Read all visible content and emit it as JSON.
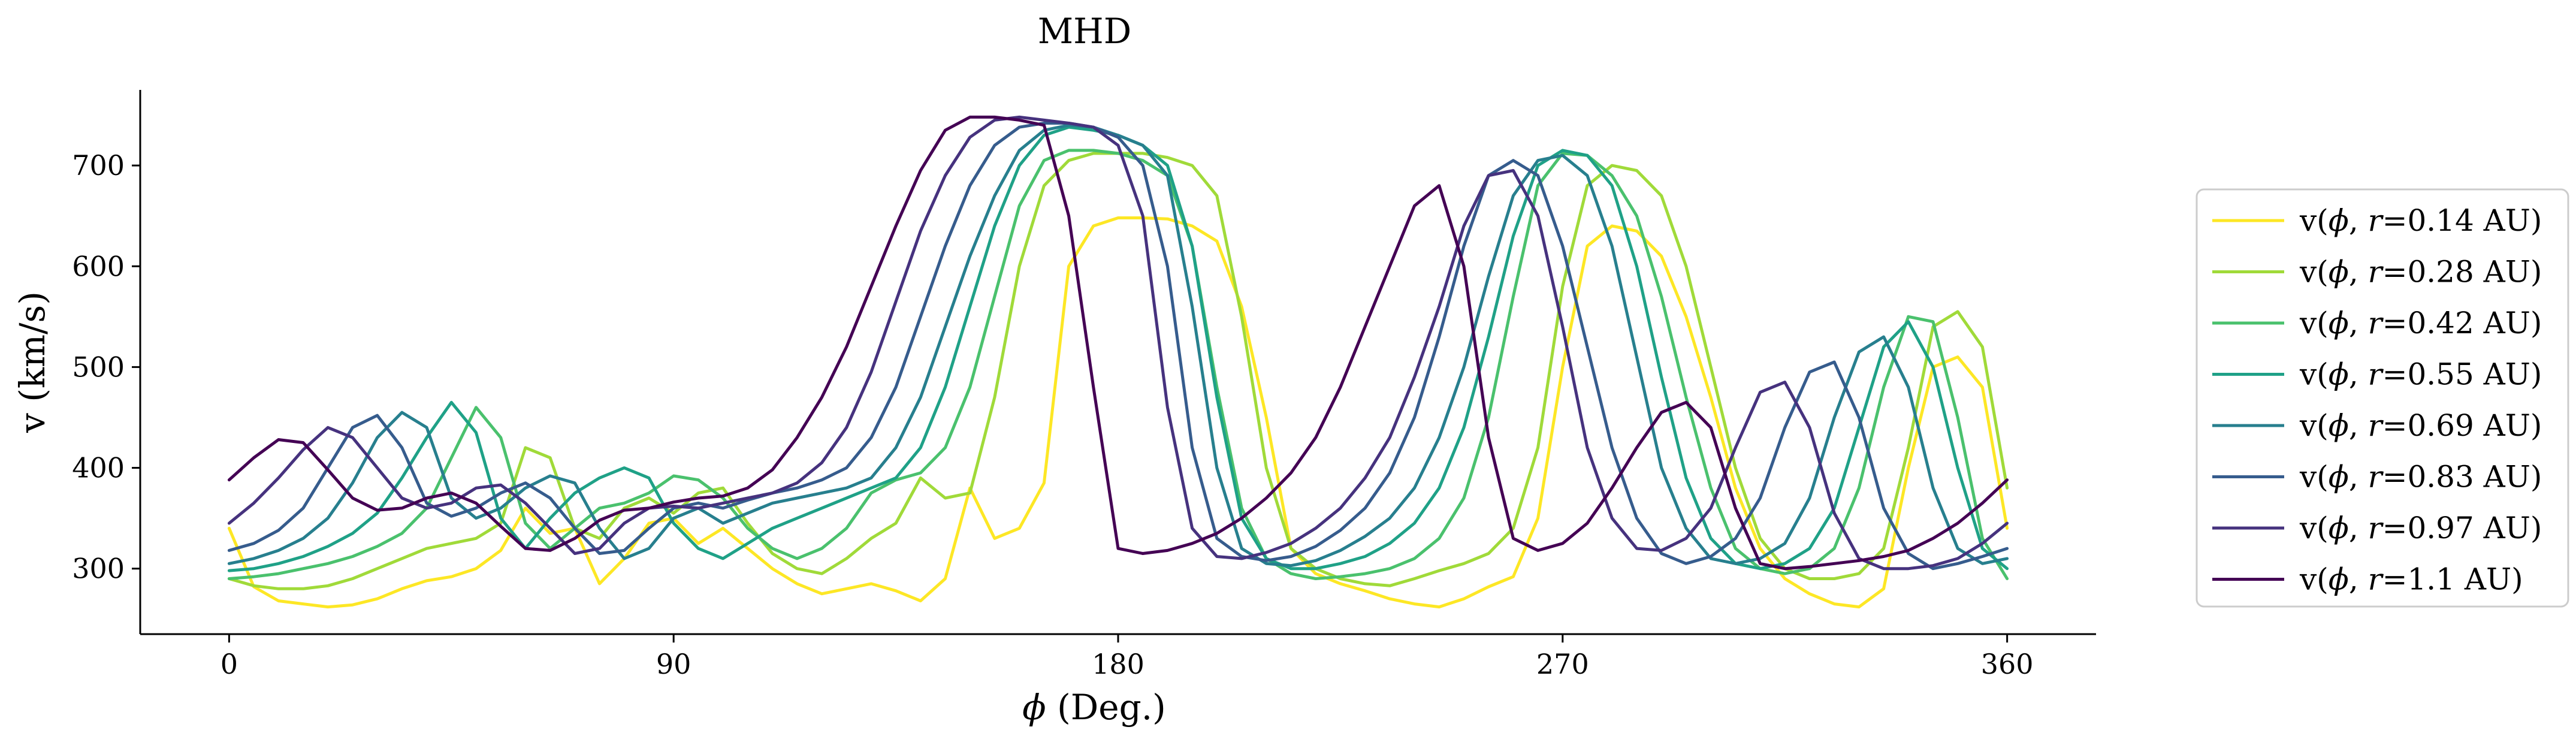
{
  "chart_data": {
    "type": "line",
    "title": "MHD",
    "xlabel_symbol": "ϕ",
    "xlabel_suffix": " (Deg.)",
    "ylabel": "v (km/s)",
    "xlim": [
      -18,
      378
    ],
    "ylim": [
      235,
      775
    ],
    "xticks": [
      0,
      90,
      180,
      270,
      360
    ],
    "yticks": [
      300,
      400,
      500,
      600,
      700
    ],
    "grid": false,
    "legend_position": "right-outside",
    "legend_prefix": "v(",
    "legend_mid": ", ",
    "legend_r": "r",
    "series": [
      {
        "name": "0.14 AU",
        "color": "#fde725",
        "x": [
          0,
          5,
          10,
          15,
          20,
          25,
          30,
          35,
          40,
          45,
          50,
          55,
          60,
          65,
          70,
          75,
          80,
          85,
          90,
          95,
          100,
          105,
          110,
          115,
          120,
          125,
          130,
          135,
          140,
          145,
          150,
          155,
          160,
          165,
          170,
          175,
          180,
          185,
          190,
          195,
          200,
          205,
          210,
          215,
          220,
          225,
          230,
          235,
          240,
          245,
          250,
          255,
          260,
          265,
          270,
          275,
          280,
          285,
          290,
          295,
          300,
          305,
          310,
          315,
          320,
          325,
          330,
          335,
          340,
          345,
          350,
          355,
          360
        ],
        "y": [
          340,
          282,
          268,
          265,
          262,
          264,
          270,
          280,
          288,
          292,
          300,
          318,
          360,
          335,
          340,
          285,
          310,
          345,
          350,
          325,
          340,
          320,
          300,
          285,
          275,
          280,
          285,
          278,
          268,
          290,
          380,
          330,
          340,
          385,
          600,
          640,
          648,
          648,
          647,
          640,
          625,
          560,
          450,
          320,
          295,
          285,
          278,
          270,
          265,
          262,
          270,
          282,
          292,
          350,
          500,
          620,
          640,
          635,
          610,
          550,
          470,
          380,
          320,
          290,
          275,
          265,
          262,
          280,
          400,
          500,
          510,
          480,
          340
        ]
      },
      {
        "name": "0.28 AU",
        "color": "#a0da39",
        "x": [
          0,
          5,
          10,
          15,
          20,
          25,
          30,
          35,
          40,
          45,
          50,
          55,
          60,
          65,
          70,
          75,
          80,
          85,
          90,
          95,
          100,
          105,
          110,
          115,
          120,
          125,
          130,
          135,
          140,
          145,
          150,
          155,
          160,
          165,
          170,
          175,
          180,
          185,
          190,
          195,
          200,
          205,
          210,
          215,
          220,
          225,
          230,
          235,
          240,
          245,
          250,
          255,
          260,
          265,
          270,
          275,
          280,
          285,
          290,
          295,
          300,
          305,
          310,
          315,
          320,
          325,
          330,
          335,
          340,
          345,
          350,
          355,
          360
        ],
        "y": [
          290,
          283,
          280,
          280,
          283,
          290,
          300,
          310,
          320,
          325,
          330,
          345,
          420,
          410,
          340,
          330,
          360,
          370,
          355,
          375,
          380,
          345,
          315,
          300,
          295,
          310,
          330,
          345,
          390,
          370,
          375,
          470,
          600,
          680,
          705,
          712,
          712,
          712,
          708,
          700,
          670,
          550,
          400,
          320,
          300,
          290,
          285,
          283,
          290,
          298,
          305,
          315,
          340,
          420,
          580,
          680,
          700,
          695,
          670,
          600,
          500,
          400,
          330,
          300,
          290,
          290,
          295,
          320,
          420,
          540,
          555,
          520,
          380
        ]
      },
      {
        "name": "0.42 AU",
        "color": "#4ac16d",
        "x": [
          0,
          5,
          10,
          15,
          20,
          25,
          30,
          35,
          40,
          45,
          50,
          55,
          60,
          65,
          70,
          75,
          80,
          85,
          90,
          95,
          100,
          105,
          110,
          115,
          120,
          125,
          130,
          135,
          140,
          145,
          150,
          155,
          160,
          165,
          170,
          175,
          180,
          185,
          190,
          195,
          200,
          205,
          210,
          215,
          220,
          225,
          230,
          235,
          240,
          245,
          250,
          255,
          260,
          265,
          270,
          275,
          280,
          285,
          290,
          295,
          300,
          305,
          310,
          315,
          320,
          325,
          330,
          335,
          340,
          345,
          350,
          355,
          360
        ],
        "y": [
          290,
          292,
          295,
          300,
          305,
          312,
          322,
          335,
          360,
          410,
          460,
          430,
          345,
          320,
          340,
          360,
          365,
          375,
          392,
          388,
          370,
          340,
          320,
          310,
          320,
          340,
          375,
          388,
          395,
          420,
          480,
          570,
          660,
          705,
          715,
          715,
          712,
          705,
          690,
          620,
          480,
          360,
          310,
          295,
          290,
          292,
          295,
          300,
          310,
          330,
          370,
          450,
          570,
          680,
          712,
          710,
          690,
          650,
          570,
          470,
          380,
          320,
          300,
          295,
          300,
          320,
          380,
          480,
          550,
          545,
          450,
          330,
          290
        ]
      },
      {
        "name": "0.55 AU",
        "color": "#1fa187",
        "x": [
          0,
          5,
          10,
          15,
          20,
          25,
          30,
          35,
          40,
          45,
          50,
          55,
          60,
          65,
          70,
          75,
          80,
          85,
          90,
          95,
          100,
          105,
          110,
          115,
          120,
          125,
          130,
          135,
          140,
          145,
          150,
          155,
          160,
          165,
          170,
          175,
          180,
          185,
          190,
          195,
          200,
          205,
          210,
          215,
          220,
          225,
          230,
          235,
          240,
          245,
          250,
          255,
          260,
          265,
          270,
          275,
          280,
          285,
          290,
          295,
          300,
          305,
          310,
          315,
          320,
          325,
          330,
          335,
          340,
          345,
          350,
          355,
          360
        ],
        "y": [
          298,
          300,
          305,
          312,
          322,
          335,
          355,
          390,
          430,
          465,
          435,
          350,
          320,
          350,
          375,
          390,
          400,
          390,
          345,
          320,
          310,
          325,
          340,
          350,
          360,
          370,
          380,
          390,
          420,
          480,
          560,
          640,
          700,
          730,
          738,
          735,
          730,
          720,
          700,
          620,
          470,
          350,
          310,
          300,
          300,
          305,
          312,
          325,
          345,
          380,
          440,
          530,
          630,
          700,
          715,
          710,
          680,
          600,
          490,
          390,
          330,
          305,
          300,
          305,
          320,
          360,
          440,
          520,
          545,
          500,
          400,
          320,
          300
        ]
      },
      {
        "name": "0.69 AU",
        "color": "#277f8e",
        "x": [
          0,
          5,
          10,
          15,
          20,
          25,
          30,
          35,
          40,
          45,
          50,
          55,
          60,
          65,
          70,
          75,
          80,
          85,
          90,
          95,
          100,
          105,
          110,
          115,
          120,
          125,
          130,
          135,
          140,
          145,
          150,
          155,
          160,
          165,
          170,
          175,
          180,
          185,
          190,
          195,
          200,
          205,
          210,
          215,
          220,
          225,
          230,
          235,
          240,
          245,
          250,
          255,
          260,
          265,
          270,
          275,
          280,
          285,
          290,
          295,
          300,
          305,
          310,
          315,
          320,
          325,
          330,
          335,
          340,
          345,
          350,
          355,
          360
        ],
        "y": [
          305,
          310,
          318,
          330,
          350,
          385,
          430,
          455,
          440,
          370,
          350,
          360,
          380,
          392,
          385,
          340,
          310,
          320,
          350,
          360,
          345,
          355,
          365,
          370,
          375,
          380,
          390,
          420,
          470,
          540,
          610,
          670,
          715,
          735,
          740,
          738,
          730,
          720,
          690,
          560,
          400,
          320,
          305,
          303,
          308,
          318,
          332,
          350,
          380,
          430,
          500,
          590,
          670,
          705,
          710,
          690,
          620,
          510,
          400,
          340,
          310,
          305,
          310,
          325,
          370,
          450,
          515,
          530,
          480,
          380,
          320,
          305,
          310
        ]
      },
      {
        "name": "0.83 AU",
        "color": "#365c8d",
        "x": [
          0,
          5,
          10,
          15,
          20,
          25,
          30,
          35,
          40,
          45,
          50,
          55,
          60,
          65,
          70,
          75,
          80,
          85,
          90,
          95,
          100,
          105,
          110,
          115,
          120,
          125,
          130,
          135,
          140,
          145,
          150,
          155,
          160,
          165,
          170,
          175,
          180,
          185,
          190,
          195,
          200,
          205,
          210,
          215,
          220,
          225,
          230,
          235,
          240,
          245,
          250,
          255,
          260,
          265,
          270,
          275,
          280,
          285,
          290,
          295,
          300,
          305,
          310,
          315,
          320,
          325,
          330,
          335,
          340,
          345,
          350,
          355,
          360
        ],
        "y": [
          318,
          325,
          338,
          360,
          400,
          440,
          452,
          420,
          365,
          352,
          360,
          375,
          385,
          370,
          340,
          315,
          318,
          340,
          360,
          365,
          360,
          368,
          375,
          380,
          388,
          400,
          430,
          480,
          550,
          620,
          680,
          720,
          738,
          742,
          742,
          738,
          728,
          700,
          600,
          420,
          330,
          312,
          308,
          312,
          322,
          338,
          360,
          395,
          450,
          530,
          620,
          690,
          705,
          690,
          620,
          520,
          420,
          350,
          315,
          305,
          312,
          330,
          370,
          440,
          495,
          505,
          450,
          360,
          315,
          300,
          305,
          312,
          320
        ]
      },
      {
        "name": "0.97 AU",
        "color": "#46327e",
        "x": [
          0,
          5,
          10,
          15,
          20,
          25,
          30,
          35,
          40,
          45,
          50,
          55,
          60,
          65,
          70,
          75,
          80,
          85,
          90,
          95,
          100,
          105,
          110,
          115,
          120,
          125,
          130,
          135,
          140,
          145,
          150,
          155,
          160,
          165,
          170,
          175,
          180,
          185,
          190,
          195,
          200,
          205,
          210,
          215,
          220,
          225,
          230,
          235,
          240,
          245,
          250,
          255,
          260,
          265,
          270,
          275,
          280,
          285,
          290,
          295,
          300,
          305,
          310,
          315,
          320,
          325,
          330,
          335,
          340,
          345,
          350,
          355,
          360
        ],
        "y": [
          345,
          365,
          390,
          418,
          440,
          430,
          400,
          370,
          360,
          365,
          380,
          383,
          365,
          340,
          315,
          320,
          345,
          360,
          362,
          360,
          365,
          370,
          375,
          385,
          405,
          440,
          495,
          565,
          635,
          690,
          728,
          745,
          748,
          745,
          742,
          738,
          720,
          650,
          460,
          340,
          312,
          310,
          316,
          325,
          340,
          360,
          390,
          430,
          490,
          560,
          640,
          690,
          695,
          650,
          540,
          420,
          350,
          320,
          318,
          330,
          360,
          420,
          475,
          485,
          440,
          355,
          310,
          300,
          300,
          303,
          310,
          325,
          345
        ]
      },
      {
        "name": "1.1 AU",
        "color": "#440154",
        "x": [
          0,
          5,
          10,
          15,
          20,
          25,
          30,
          35,
          40,
          45,
          50,
          55,
          60,
          65,
          70,
          75,
          80,
          85,
          90,
          95,
          100,
          105,
          110,
          115,
          120,
          125,
          130,
          135,
          140,
          145,
          150,
          155,
          160,
          165,
          170,
          175,
          180,
          185,
          190,
          195,
          200,
          205,
          210,
          215,
          220,
          225,
          230,
          235,
          240,
          245,
          250,
          255,
          260,
          265,
          270,
          275,
          280,
          285,
          290,
          295,
          300,
          305,
          310,
          315,
          320,
          325,
          330,
          335,
          340,
          345,
          350,
          355,
          360
        ],
        "y": [
          388,
          410,
          428,
          425,
          398,
          370,
          358,
          360,
          370,
          375,
          365,
          342,
          320,
          318,
          330,
          348,
          358,
          360,
          366,
          370,
          372,
          380,
          398,
          430,
          470,
          520,
          580,
          640,
          695,
          735,
          748,
          748,
          745,
          740,
          650,
          480,
          320,
          315,
          318,
          325,
          335,
          350,
          370,
          395,
          430,
          480,
          540,
          600,
          660,
          680,
          600,
          430,
          330,
          318,
          325,
          345,
          380,
          420,
          455,
          465,
          440,
          360,
          305,
          300,
          302,
          305,
          308,
          312,
          318,
          330,
          345,
          365,
          388
        ]
      }
    ]
  }
}
